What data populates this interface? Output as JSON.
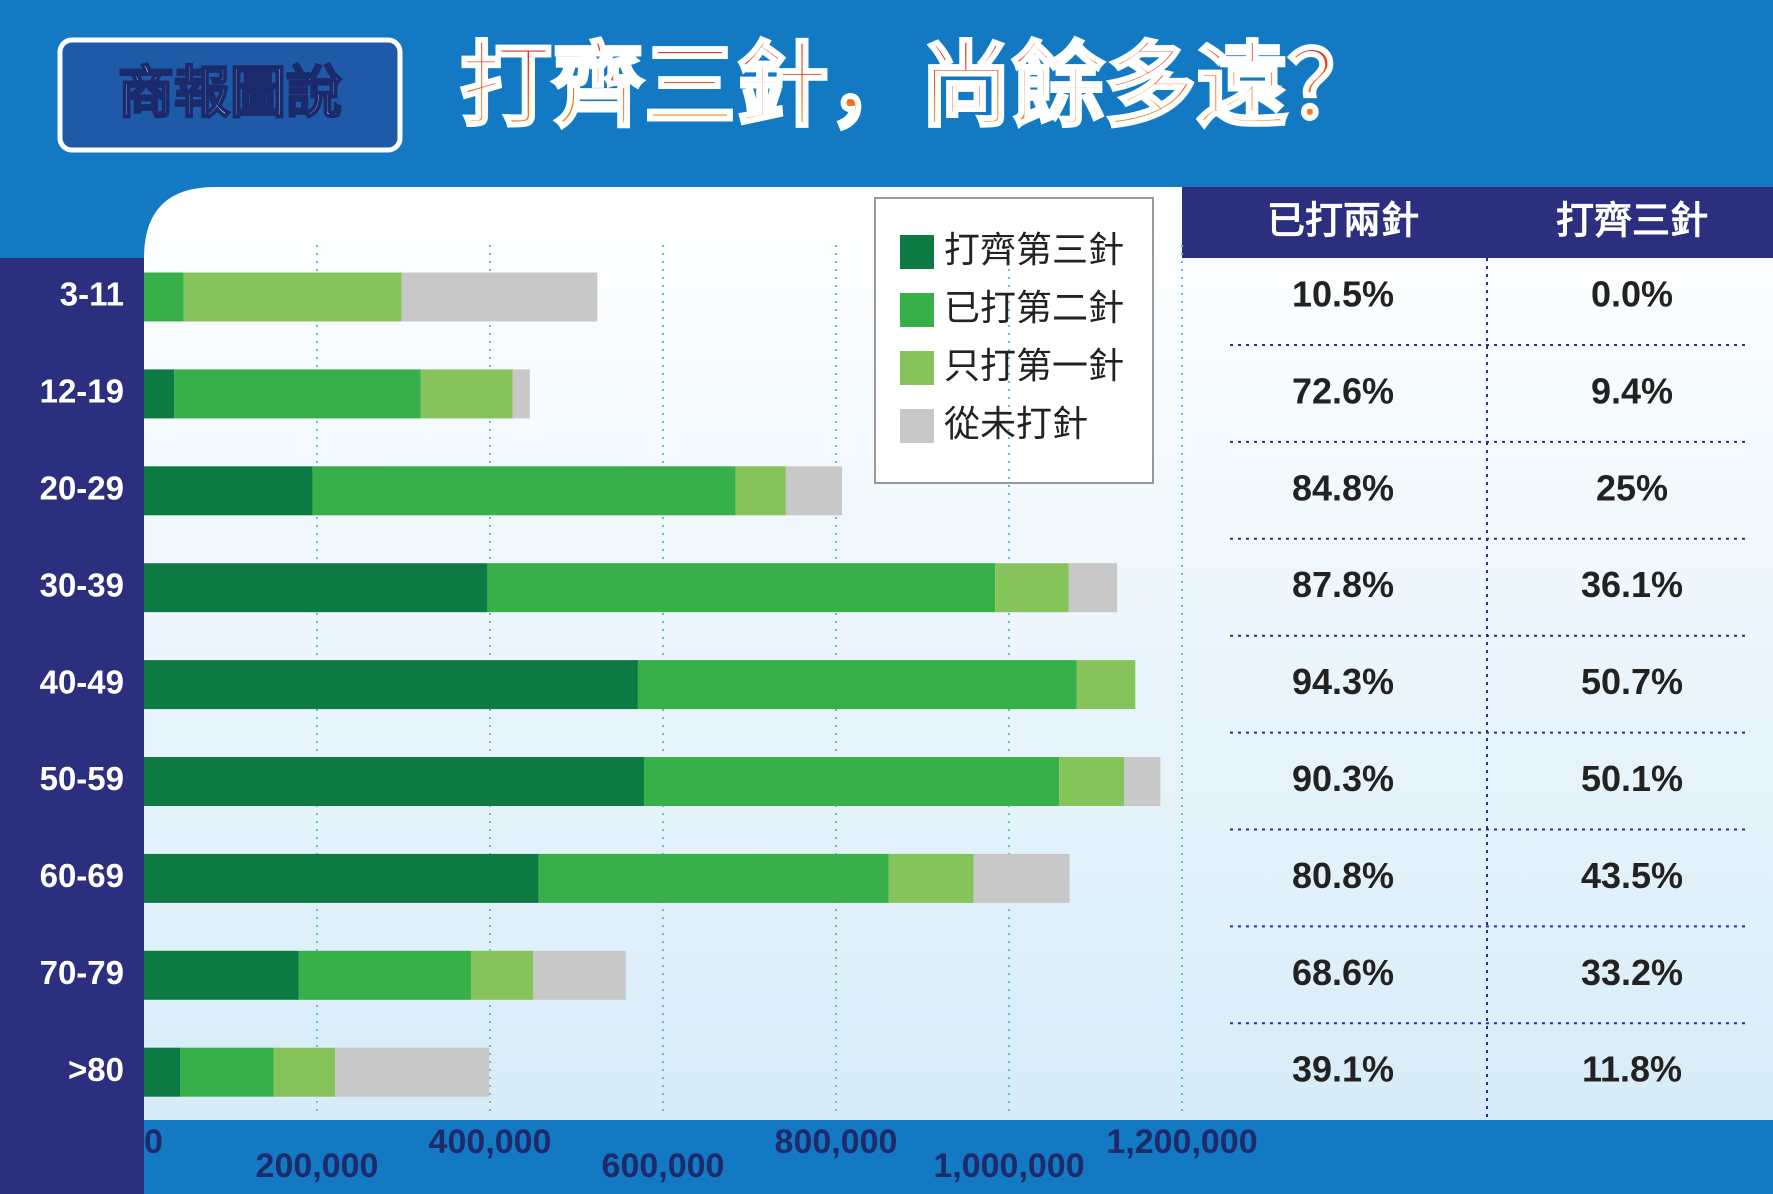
{
  "header": {
    "logo": "商報圖說"
  },
  "chart_data": {
    "type": "stacked-bar-horizontal",
    "title": "打齊三針，尚餘多遠？",
    "categories": [
      "3-11",
      "12-19",
      "20-29",
      "30-39",
      "40-49",
      "50-59",
      "60-69",
      "70-79",
      ">80"
    ],
    "series": [
      {
        "name": "打齊第三針",
        "color": "#0e7a43",
        "values": [
          0,
          35000,
          195000,
          397000,
          571000,
          578000,
          456000,
          179000,
          42000
        ]
      },
      {
        "name": "已打第二針",
        "color": "#37b04a",
        "values": [
          46000,
          285000,
          489000,
          587000,
          507000,
          480000,
          405000,
          199000,
          108000
        ]
      },
      {
        "name": "只打第一針",
        "color": "#86c35b",
        "values": [
          252000,
          106000,
          58000,
          85000,
          68000,
          75000,
          98000,
          72000,
          71000
        ]
      },
      {
        "name": "從未打針",
        "color": "#c8c8c8",
        "values": [
          226000,
          20000,
          65000,
          56000,
          0,
          42000,
          111000,
          107000,
          178000
        ]
      }
    ],
    "xlim": [
      0,
      1200000
    ],
    "xticks": [
      0,
      {
        "value": 200000,
        "label": "200,000"
      },
      {
        "value": 400000,
        "label": "400,000"
      },
      {
        "value": 600000,
        "label": "600,000"
      },
      {
        "value": 800000,
        "label": "800,000"
      },
      {
        "value": 1000000,
        "label": "1,000,000"
      },
      {
        "value": 1200000,
        "label": "1,200,000"
      }
    ],
    "grid": true
  },
  "table": {
    "headers": [
      "已打兩針",
      "打齊三針"
    ],
    "rows": [
      [
        "10.5%",
        "0.0%"
      ],
      [
        "72.6%",
        "9.4%"
      ],
      [
        "84.8%",
        "25%"
      ],
      [
        "87.8%",
        "36.1%"
      ],
      [
        "94.3%",
        "50.7%"
      ],
      [
        "90.3%",
        "50.1%"
      ],
      [
        "80.8%",
        "43.5%"
      ],
      [
        "68.6%",
        "33.2%"
      ],
      [
        "39.1%",
        "11.8%"
      ]
    ]
  }
}
